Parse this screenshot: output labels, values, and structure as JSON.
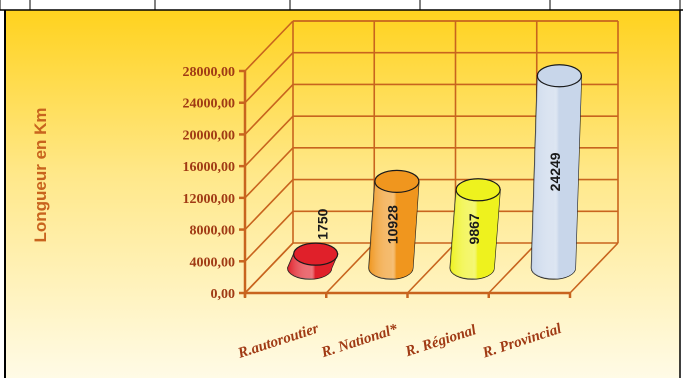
{
  "chart_data": {
    "type": "bar",
    "title": "",
    "xlabel": "",
    "ylabel": "Longueur en Km",
    "categories": [
      "R.autoroutier",
      "R. National*",
      "R. Régional",
      "R. Provincial"
    ],
    "values": [
      1750,
      10928,
      9867,
      24249
    ],
    "value_labels": [
      "1750",
      "10928",
      "9867",
      "24249"
    ],
    "yticks": [
      "0,00",
      "4000,00",
      "8000,00",
      "12000,00",
      "16000,00",
      "20000,00",
      "24000,00",
      "28000,00"
    ],
    "ylim": [
      0,
      28000
    ],
    "grid": true,
    "legend": "none",
    "bar_colors": [
      "#e0202a",
      "#f0961e",
      "#eef21e",
      "#c8d6ea"
    ],
    "colors": {
      "axis": "#c8641e",
      "tick_text": "#a03a14",
      "category_text": "#a03a14",
      "ylabel": "#c8641e",
      "background_top": "#ffd21e",
      "background_bottom": "#fffbe6"
    }
  }
}
